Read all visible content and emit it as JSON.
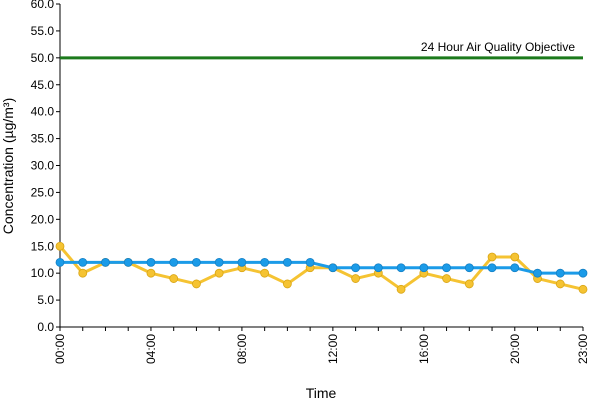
{
  "chart_data": {
    "type": "line",
    "title": "",
    "xlabel": "Time",
    "ylabel": "Concentration (µg/m³)",
    "ylim": [
      0,
      60
    ],
    "yticks": [
      "0.0",
      "5.0",
      "10.0",
      "15.0",
      "20.0",
      "25.0",
      "30.0",
      "35.0",
      "40.0",
      "45.0",
      "50.0",
      "55.0",
      "60.0"
    ],
    "categories": [
      "00:00",
      "01:00",
      "02:00",
      "03:00",
      "04:00",
      "05:00",
      "06:00",
      "07:00",
      "08:00",
      "09:00",
      "10:00",
      "11:00",
      "12:00",
      "13:00",
      "14:00",
      "15:00",
      "16:00",
      "17:00",
      "18:00",
      "19:00",
      "20:00",
      "21:00",
      "22:00",
      "23:00"
    ],
    "xtick_labels": [
      "00:00",
      "04:00",
      "08:00",
      "12:00",
      "16:00",
      "20:00",
      "23:00"
    ],
    "grid": false,
    "legend": "none",
    "series": [
      {
        "color": "#f5c332",
        "values": [
          15,
          10,
          12,
          12,
          10,
          9,
          8,
          10,
          11,
          10,
          8,
          11,
          11,
          9,
          10,
          7,
          10,
          9,
          8,
          13,
          13,
          9,
          8,
          7
        ]
      },
      {
        "color": "#1b9be8",
        "values": [
          12,
          12,
          12,
          12,
          12,
          12,
          12,
          12,
          12,
          12,
          12,
          12,
          11,
          11,
          11,
          11,
          11,
          11,
          11,
          11,
          11,
          10,
          10,
          10
        ]
      }
    ],
    "reference_line": {
      "value": 50,
      "label": "24 Hour Air Quality Objective",
      "color": "#1c7a1c"
    }
  }
}
